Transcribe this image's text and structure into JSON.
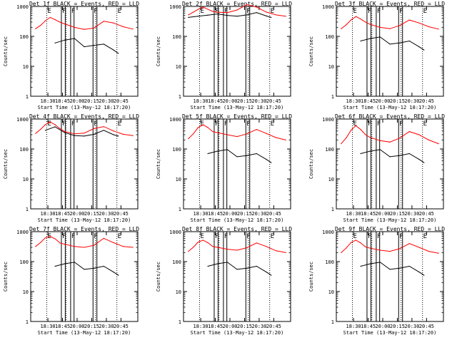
{
  "figure": {
    "time_axis": {
      "start_label": "18:17:20",
      "tick_times": [
        "18:30",
        "18:45",
        "20:00",
        "20:15",
        "20:30",
        "20:45"
      ],
      "tick_minutes": [
        12.67,
        27.67,
        42.67,
        57.67,
        72.67,
        87.67
      ],
      "xlim_minutes": [
        -5,
        105
      ]
    },
    "y_axis": {
      "scale": "log",
      "ylim": [
        1,
        1000
      ],
      "tick_labels": [
        "1",
        "10",
        "100",
        "1000"
      ],
      "ylabel": "Counts/sec"
    },
    "markers": {
      "dotted_minutes": [
        11.5,
        31.5,
        61.5,
        83.5
      ],
      "solid_minutes": [
        26.5,
        30.5,
        36,
        39.5,
        59,
        63
      ],
      "letters": [
        "E",
        "F",
        "F",
        "F",
        "E"
      ]
    },
    "colors": {
      "events": "#000000",
      "lld": "#ff0000",
      "frame": "#000000"
    }
  },
  "chart_data": [
    {
      "type": "line",
      "title": "Det 1f BLACK = Events, RED = LLD",
      "xlabel": "Start Time (13-May-12 18:17:20)",
      "ylabel": "Counts/sec",
      "xtick_labels": [
        "18:30",
        "18:45",
        "20:00",
        "20:15",
        "20:30",
        "20:45"
      ],
      "ylim": [
        1,
        1000
      ],
      "series": [
        {
          "name": "Events",
          "x": [
            0,
            10,
            20,
            30,
            40,
            50,
            60,
            70,
            80,
            85,
            90,
            100
          ],
          "y": [
            null,
            null,
            60,
            75,
            85,
            45,
            50,
            55,
            35,
            27,
            null,
            null
          ]
        },
        {
          "name": "LLD",
          "x": [
            0,
            5,
            10,
            15,
            20,
            25,
            30,
            40,
            50,
            60,
            70,
            80,
            90,
            100
          ],
          "y": [
            180,
            230,
            330,
            430,
            360,
            300,
            260,
            200,
            170,
            190,
            320,
            280,
            210,
            175
          ]
        }
      ]
    },
    {
      "type": "line",
      "title": "Det 2f BLACK = Events, RED = LLD",
      "xlabel": "Start Time (13-May-12 18:17:20)",
      "ylabel": "Counts/sec",
      "xtick_labels": [
        "18:30",
        "18:45",
        "20:00",
        "20:15",
        "20:30",
        "20:45"
      ],
      "ylim": [
        1,
        1000
      ],
      "series": [
        {
          "name": "Events",
          "x": [
            0,
            10,
            20,
            30,
            40,
            50,
            60,
            70,
            80,
            85,
            90,
            100
          ],
          "y": [
            430,
            470,
            510,
            560,
            500,
            470,
            520,
            620,
            480,
            430,
            null,
            null
          ]
        },
        {
          "name": "LLD",
          "x": [
            0,
            5,
            10,
            15,
            20,
            25,
            30,
            40,
            50,
            60,
            70,
            80,
            90,
            100
          ],
          "y": [
            520,
            640,
            800,
            950,
            800,
            680,
            640,
            620,
            760,
            1150,
            950,
            650,
            520,
            470
          ]
        }
      ]
    },
    {
      "type": "line",
      "title": "Det 3f BLACK = Events, RED = LLD",
      "xlabel": "Start Time (13-May-12 18:17:20)",
      "ylabel": "Counts/sec",
      "xtick_labels": [
        "18:30",
        "18:45",
        "20:00",
        "20:15",
        "20:30",
        "20:45"
      ],
      "ylim": [
        1,
        1000
      ],
      "series": [
        {
          "name": "Events",
          "x": [
            0,
            10,
            20,
            30,
            40,
            50,
            60,
            70,
            80,
            85,
            90,
            100
          ],
          "y": [
            null,
            null,
            70,
            85,
            95,
            55,
            60,
            70,
            45,
            35,
            null,
            null
          ]
        },
        {
          "name": "LLD",
          "x": [
            0,
            5,
            10,
            15,
            20,
            25,
            30,
            40,
            50,
            60,
            70,
            80,
            90,
            100
          ],
          "y": [
            180,
            240,
            350,
            460,
            380,
            300,
            250,
            200,
            180,
            230,
            350,
            280,
            210,
            175
          ]
        }
      ]
    },
    {
      "type": "line",
      "title": "Det 4f BLACK = Events, RED = LLD",
      "xlabel": "Start Time (13-May-12 18:17:20)",
      "ylabel": "Counts/sec",
      "xtick_labels": [
        "18:30",
        "18:45",
        "20:00",
        "20:15",
        "20:30",
        "20:45"
      ],
      "ylim": [
        1,
        1000
      ],
      "series": [
        {
          "name": "Events",
          "x": [
            0,
            10,
            20,
            30,
            40,
            50,
            60,
            70,
            80,
            85,
            90,
            100
          ],
          "y": [
            null,
            420,
            550,
            350,
            280,
            270,
            310,
            420,
            300,
            270,
            null,
            null
          ]
        },
        {
          "name": "LLD",
          "x": [
            0,
            5,
            10,
            15,
            20,
            25,
            30,
            40,
            50,
            60,
            70,
            80,
            90,
            100
          ],
          "y": [
            330,
            450,
            650,
            800,
            650,
            480,
            380,
            320,
            340,
            480,
            560,
            400,
            310,
            280
          ]
        }
      ]
    },
    {
      "type": "line",
      "title": "Det 5f BLACK = Events, RED = LLD",
      "xlabel": "Start Time (13-May-12 18:17:20)",
      "ylabel": "Counts/sec",
      "xtick_labels": [
        "18:30",
        "18:45",
        "20:00",
        "20:15",
        "20:30",
        "20:45"
      ],
      "ylim": [
        1,
        1000
      ],
      "series": [
        {
          "name": "Events",
          "x": [
            0,
            10,
            20,
            30,
            40,
            50,
            60,
            70,
            80,
            85,
            90,
            100
          ],
          "y": [
            null,
            null,
            70,
            85,
            95,
            55,
            60,
            70,
            45,
            35,
            null,
            null
          ]
        },
        {
          "name": "LLD",
          "x": [
            0,
            5,
            10,
            15,
            20,
            25,
            30,
            40,
            50,
            60,
            70,
            80,
            90,
            100
          ],
          "y": [
            220,
            320,
            520,
            650,
            520,
            380,
            350,
            300,
            260,
            320,
            450,
            330,
            240,
            200
          ]
        }
      ]
    },
    {
      "type": "line",
      "title": "Det 6f BLACK = Events, RED = LLD",
      "xlabel": "Start Time (13-May-12 18:17:20)",
      "ylabel": "Counts/sec",
      "xtick_labels": [
        "18:30",
        "18:45",
        "20:00",
        "20:15",
        "20:30",
        "20:45"
      ],
      "ylim": [
        1,
        1000
      ],
      "series": [
        {
          "name": "Events",
          "x": [
            0,
            10,
            20,
            30,
            40,
            50,
            60,
            70,
            80,
            85,
            90,
            100
          ],
          "y": [
            null,
            null,
            70,
            85,
            95,
            55,
            60,
            70,
            45,
            35,
            null,
            null
          ]
        },
        {
          "name": "LLD",
          "x": [
            0,
            5,
            10,
            15,
            20,
            25,
            30,
            40,
            50,
            60,
            70,
            80,
            90,
            100
          ],
          "y": [
            150,
            230,
            420,
            600,
            450,
            300,
            240,
            190,
            170,
            230,
            380,
            300,
            200,
            150
          ]
        }
      ]
    },
    {
      "type": "line",
      "title": "Det 7f BLACK = Events, RED = LLD",
      "xlabel": "Start Time (13-May-12 18:17:20)",
      "ylabel": "Counts/sec",
      "xtick_labels": [
        "18:30",
        "18:45",
        "20:00",
        "20:15",
        "20:30",
        "20:45"
      ],
      "ylim": [
        1,
        1000
      ],
      "series": [
        {
          "name": "Events",
          "x": [
            0,
            10,
            20,
            30,
            40,
            50,
            60,
            70,
            80,
            85,
            90,
            100
          ],
          "y": [
            null,
            null,
            70,
            85,
            95,
            55,
            60,
            70,
            45,
            35,
            null,
            null
          ]
        },
        {
          "name": "LLD",
          "x": [
            0,
            5,
            10,
            15,
            20,
            25,
            30,
            40,
            50,
            60,
            70,
            80,
            90,
            100
          ],
          "y": [
            320,
            430,
            620,
            700,
            580,
            420,
            380,
            320,
            300,
            350,
            600,
            430,
            320,
            300
          ]
        }
      ]
    },
    {
      "type": "line",
      "title": "Det 8f BLACK = Events, RED = LLD",
      "xlabel": "Start Time (13-May-12 18:17:20)",
      "ylabel": "Counts/sec",
      "xtick_labels": [
        "18:30",
        "18:45",
        "20:00",
        "20:15",
        "20:30",
        "20:45"
      ],
      "ylim": [
        1,
        1000
      ],
      "series": [
        {
          "name": "Events",
          "x": [
            0,
            10,
            20,
            30,
            40,
            50,
            60,
            70,
            80,
            85,
            90,
            100
          ],
          "y": [
            null,
            null,
            70,
            85,
            95,
            55,
            60,
            70,
            45,
            35,
            null,
            null
          ]
        },
        {
          "name": "LLD",
          "x": [
            0,
            5,
            10,
            15,
            20,
            25,
            30,
            40,
            50,
            60,
            70,
            80,
            90,
            100
          ],
          "y": [
            220,
            300,
            450,
            520,
            430,
            320,
            300,
            260,
            240,
            290,
            420,
            320,
            230,
            200
          ]
        }
      ]
    },
    {
      "type": "line",
      "title": "Det 9f BLACK = Events, RED = LLD",
      "xlabel": "Start Time (13-May-12 18:17:20)",
      "ylabel": "Counts/sec",
      "xtick_labels": [
        "18:30",
        "18:45",
        "20:00",
        "20:15",
        "20:30",
        "20:45"
      ],
      "ylim": [
        1,
        1000
      ],
      "series": [
        {
          "name": "Events",
          "x": [
            0,
            10,
            20,
            30,
            40,
            50,
            60,
            70,
            80,
            85,
            90,
            100
          ],
          "y": [
            null,
            null,
            70,
            85,
            95,
            55,
            60,
            70,
            45,
            35,
            null,
            null
          ]
        },
        {
          "name": "LLD",
          "x": [
            0,
            5,
            10,
            15,
            20,
            25,
            30,
            40,
            50,
            60,
            70,
            80,
            90,
            100
          ],
          "y": [
            200,
            280,
            430,
            520,
            420,
            310,
            280,
            240,
            220,
            270,
            400,
            300,
            220,
            190
          ]
        }
      ]
    }
  ]
}
